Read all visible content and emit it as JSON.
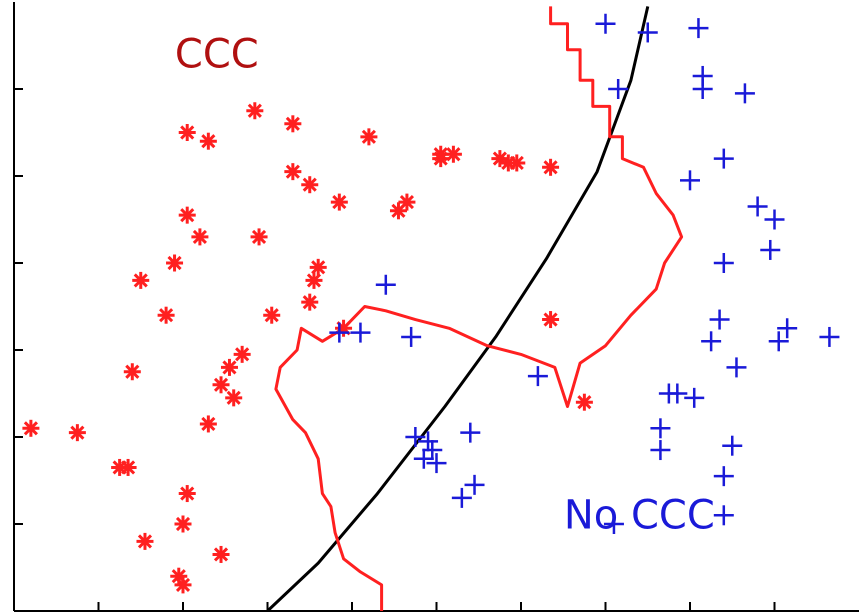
{
  "chart_data": {
    "type": "scatter",
    "title": "",
    "xlabel": "",
    "ylabel": "",
    "xlim": [
      0,
      10
    ],
    "ylim": [
      0,
      7
    ],
    "grid": false,
    "legend": "none",
    "annotations": [
      {
        "text": "CCC",
        "x": 2.4,
        "y": 6.25,
        "color": "#b01010"
      },
      {
        "text": "No CCC",
        "x": 7.4,
        "y": 0.95,
        "color": "#1a1ad8"
      }
    ],
    "series": [
      {
        "marker": "asterisk",
        "color": "#ff2020",
        "points": [
          [
            0.2,
            2.1
          ],
          [
            0.75,
            2.05
          ],
          [
            1.25,
            1.65
          ],
          [
            1.35,
            1.65
          ],
          [
            1.4,
            2.75
          ],
          [
            1.5,
            3.8
          ],
          [
            1.55,
            0.8
          ],
          [
            1.8,
            3.4
          ],
          [
            1.9,
            4.0
          ],
          [
            1.95,
            0.4
          ],
          [
            2.0,
            0.3
          ],
          [
            2.0,
            1.0
          ],
          [
            2.05,
            1.35
          ],
          [
            2.05,
            5.5
          ],
          [
            2.05,
            4.55
          ],
          [
            2.2,
            4.3
          ],
          [
            2.3,
            5.4
          ],
          [
            2.3,
            2.15
          ],
          [
            2.45,
            0.65
          ],
          [
            2.45,
            2.6
          ],
          [
            2.55,
            2.8
          ],
          [
            2.6,
            2.45
          ],
          [
            2.7,
            2.95
          ],
          [
            2.85,
            5.75
          ],
          [
            2.9,
            4.3
          ],
          [
            3.05,
            3.4
          ],
          [
            3.3,
            5.05
          ],
          [
            3.3,
            5.6
          ],
          [
            3.5,
            4.9
          ],
          [
            3.5,
            3.55
          ],
          [
            3.55,
            3.8
          ],
          [
            3.6,
            3.95
          ],
          [
            3.85,
            4.7
          ],
          [
            3.9,
            3.25
          ],
          [
            4.2,
            5.45
          ],
          [
            4.55,
            4.6
          ],
          [
            4.65,
            4.7
          ],
          [
            5.05,
            5.2
          ],
          [
            5.05,
            5.25
          ],
          [
            5.2,
            5.25
          ],
          [
            5.75,
            5.2
          ],
          [
            5.85,
            5.15
          ],
          [
            5.95,
            5.15
          ],
          [
            6.35,
            5.1
          ],
          [
            6.35,
            3.35
          ],
          [
            6.75,
            2.4
          ]
        ]
      },
      {
        "marker": "plus",
        "color": "#1a1ad8",
        "points": [
          [
            3.85,
            3.2
          ],
          [
            4.1,
            3.2
          ],
          [
            4.4,
            3.75
          ],
          [
            4.7,
            3.15
          ],
          [
            4.75,
            2.0
          ],
          [
            4.85,
            1.75
          ],
          [
            4.9,
            1.95
          ],
          [
            4.95,
            1.85
          ],
          [
            5.0,
            1.7
          ],
          [
            5.4,
            2.05
          ],
          [
            5.3,
            1.3
          ],
          [
            5.45,
            1.45
          ],
          [
            6.2,
            2.7
          ],
          [
            7.1,
            1.0
          ],
          [
            7.0,
            6.75
          ],
          [
            7.15,
            6.0
          ],
          [
            7.5,
            6.65
          ],
          [
            7.65,
            1.85
          ],
          [
            7.65,
            2.1
          ],
          [
            7.75,
            2.5
          ],
          [
            7.85,
            2.5
          ],
          [
            8.0,
            4.95
          ],
          [
            8.05,
            2.45
          ],
          [
            8.1,
            6.7
          ],
          [
            8.15,
            6.15
          ],
          [
            8.15,
            6.0
          ],
          [
            8.25,
            3.1
          ],
          [
            8.35,
            3.35
          ],
          [
            8.4,
            4.0
          ],
          [
            8.4,
            5.2
          ],
          [
            8.4,
            1.1
          ],
          [
            8.4,
            1.55
          ],
          [
            8.5,
            1.9
          ],
          [
            8.55,
            2.8
          ],
          [
            8.65,
            5.95
          ],
          [
            8.8,
            4.65
          ],
          [
            8.95,
            4.15
          ],
          [
            9.0,
            4.5
          ],
          [
            9.05,
            3.1
          ],
          [
            9.15,
            3.25
          ],
          [
            9.65,
            3.15
          ]
        ]
      }
    ],
    "curves": [
      {
        "name": "",
        "color": "#000000",
        "points": [
          [
            3.0,
            0.0
          ],
          [
            3.6,
            0.55
          ],
          [
            4.3,
            1.35
          ],
          [
            5.1,
            2.35
          ],
          [
            5.7,
            3.15
          ],
          [
            6.3,
            4.05
          ],
          [
            6.9,
            5.05
          ],
          [
            7.3,
            6.1
          ],
          [
            7.5,
            6.95
          ]
        ]
      },
      {
        "name": "",
        "color": "#ff2020",
        "points": [
          [
            6.35,
            6.95
          ],
          [
            6.35,
            6.75
          ],
          [
            6.55,
            6.75
          ],
          [
            6.55,
            6.45
          ],
          [
            6.7,
            6.45
          ],
          [
            6.7,
            6.1
          ],
          [
            6.85,
            6.1
          ],
          [
            6.85,
            5.8
          ],
          [
            7.05,
            5.8
          ],
          [
            7.05,
            5.45
          ],
          [
            7.2,
            5.45
          ],
          [
            7.2,
            5.2
          ],
          [
            7.45,
            5.1
          ],
          [
            7.6,
            4.8
          ],
          [
            7.8,
            4.55
          ],
          [
            7.9,
            4.3
          ],
          [
            7.7,
            4.0
          ],
          [
            7.6,
            3.7
          ],
          [
            7.3,
            3.4
          ],
          [
            7.0,
            3.05
          ],
          [
            6.7,
            2.85
          ],
          [
            6.55,
            2.35
          ],
          [
            6.4,
            2.8
          ],
          [
            6.0,
            2.95
          ],
          [
            5.6,
            3.05
          ],
          [
            5.15,
            3.25
          ],
          [
            4.75,
            3.35
          ],
          [
            4.4,
            3.45
          ],
          [
            4.15,
            3.5
          ],
          [
            3.9,
            3.25
          ],
          [
            3.65,
            3.1
          ],
          [
            3.4,
            3.25
          ],
          [
            3.35,
            3.0
          ],
          [
            3.15,
            2.8
          ],
          [
            3.1,
            2.55
          ],
          [
            3.3,
            2.2
          ],
          [
            3.45,
            2.05
          ],
          [
            3.6,
            1.75
          ],
          [
            3.65,
            1.35
          ],
          [
            3.75,
            1.2
          ],
          [
            3.8,
            0.9
          ],
          [
            3.9,
            0.6
          ],
          [
            4.1,
            0.45
          ],
          [
            4.35,
            0.3
          ],
          [
            4.35,
            0.0
          ]
        ]
      }
    ]
  }
}
